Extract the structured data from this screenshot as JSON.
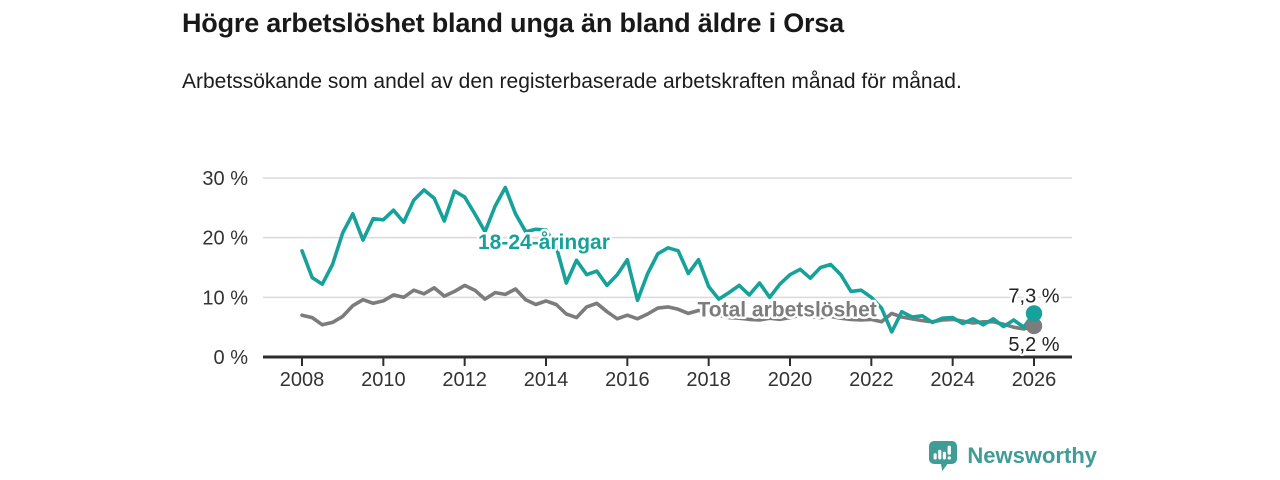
{
  "header": {
    "title": "Högre arbetslöshet bland unga än bland äldre i Orsa",
    "subtitle": "Arbetssökande som andel av den registerbaserade arbetskraften månad för månad."
  },
  "chart_data": {
    "type": "line",
    "title": "Högre arbetslöshet bland unga än bland äldre i Orsa",
    "xlabel": "",
    "ylabel": "",
    "ylim": [
      0,
      30
    ],
    "grid": "horizontal",
    "legend": "inline-labels",
    "x_unit": "decimal-year (quarterly samples of monthly data)",
    "x": [
      2008,
      2008.25,
      2008.5,
      2008.75,
      2009,
      2009.25,
      2009.5,
      2009.75,
      2010,
      2010.25,
      2010.5,
      2010.75,
      2011,
      2011.25,
      2011.5,
      2011.75,
      2012,
      2012.25,
      2012.5,
      2012.75,
      2013,
      2013.25,
      2013.5,
      2013.75,
      2014,
      2014.25,
      2014.5,
      2014.75,
      2015,
      2015.25,
      2015.5,
      2015.75,
      2016,
      2016.25,
      2016.5,
      2016.75,
      2017,
      2017.25,
      2017.5,
      2017.75,
      2018,
      2018.25,
      2018.5,
      2018.75,
      2019,
      2019.25,
      2019.5,
      2019.75,
      2020,
      2020.25,
      2020.5,
      2020.75,
      2021,
      2021.25,
      2021.5,
      2021.75,
      2022,
      2022.25,
      2022.5,
      2022.75,
      2023,
      2023.25,
      2023.5,
      2023.75,
      2024,
      2024.25,
      2024.5,
      2024.75,
      2025,
      2025.25,
      2025.5,
      2025.75,
      2026
    ],
    "series": [
      {
        "name": "18-24-åringar",
        "color": "#16a29a",
        "end_label": "7,3 %",
        "end_value": 7.3,
        "end_label_side": "above",
        "inline_label": {
          "text": "18-24-åringar",
          "x": 2013.95,
          "y": 19.3
        },
        "values": [
          17.8,
          13.3,
          12.2,
          15.5,
          20.8,
          24.0,
          19.6,
          23.2,
          23.0,
          24.6,
          22.6,
          26.3,
          28.0,
          26.6,
          22.8,
          27.8,
          26.8,
          24.0,
          21.0,
          25.3,
          28.4,
          24.0,
          21.0,
          21.4,
          21.3,
          18.5,
          12.4,
          16.2,
          13.8,
          14.4,
          12.0,
          13.8,
          16.3,
          9.5,
          14.0,
          17.3,
          18.3,
          17.8,
          14.0,
          16.3,
          11.8,
          9.7,
          10.8,
          12.0,
          10.4,
          12.4,
          10.0,
          12.2,
          13.8,
          14.7,
          13.2,
          15.0,
          15.5,
          13.8,
          11.0,
          11.2,
          10.0,
          8.2,
          4.2,
          7.6,
          6.7,
          6.9,
          5.8,
          6.5,
          6.6,
          5.6,
          6.4,
          5.4,
          6.4,
          5.1,
          6.2,
          5.0,
          7.3
        ]
      },
      {
        "name": "Total arbetslöshet",
        "color": "#7c7c7c",
        "end_label": "5,2 %",
        "end_value": 5.2,
        "end_label_side": "below",
        "inline_label": {
          "text": "Total arbetslöshet",
          "x": 2019.93,
          "y": 8.0
        },
        "values": [
          7.0,
          6.6,
          5.4,
          5.8,
          6.8,
          8.6,
          9.6,
          9.0,
          9.4,
          10.4,
          10.0,
          11.2,
          10.6,
          11.6,
          10.2,
          11.0,
          12.0,
          11.2,
          9.7,
          10.8,
          10.5,
          11.4,
          9.6,
          8.8,
          9.4,
          8.8,
          7.2,
          6.6,
          8.4,
          9.0,
          7.6,
          6.4,
          7.0,
          6.4,
          7.2,
          8.2,
          8.4,
          8.0,
          7.3,
          7.8,
          7.6,
          7.0,
          6.6,
          6.5,
          6.3,
          6.2,
          6.5,
          6.3,
          6.6,
          7.0,
          6.8,
          6.6,
          6.8,
          6.5,
          6.3,
          6.2,
          6.3,
          5.9,
          7.3,
          6.7,
          6.4,
          6.1,
          5.9,
          6.2,
          6.3,
          6.0,
          5.7,
          5.9,
          5.9,
          5.5,
          5.0,
          4.7,
          5.2
        ]
      }
    ],
    "yticks": [
      {
        "value": 0,
        "label": "0 %"
      },
      {
        "value": 10,
        "label": "10 %"
      },
      {
        "value": 20,
        "label": "20 %"
      },
      {
        "value": 30,
        "label": "30 %"
      }
    ],
    "xticks": [
      {
        "value": 2008,
        "label": "2008"
      },
      {
        "value": 2010,
        "label": "2010"
      },
      {
        "value": 2012,
        "label": "2012"
      },
      {
        "value": 2014,
        "label": "2014"
      },
      {
        "value": 2016,
        "label": "2016"
      },
      {
        "value": 2018,
        "label": "2018"
      },
      {
        "value": 2020,
        "label": "2020"
      },
      {
        "value": 2022,
        "label": "2022"
      },
      {
        "value": 2024,
        "label": "2024"
      },
      {
        "value": 2026,
        "label": "2026"
      }
    ]
  },
  "colors": {
    "youth_series": "#16a29a",
    "total_series": "#7c7c7c",
    "axis": "#2e2e2e",
    "grid": "#dadada",
    "tick_text": "#333333",
    "annotation_text": "#222222",
    "brand": "#3f9c96"
  },
  "branding": {
    "name": "Newsworthy",
    "icon": "newsworthy-speech-bubble-bar-chart-icon"
  }
}
